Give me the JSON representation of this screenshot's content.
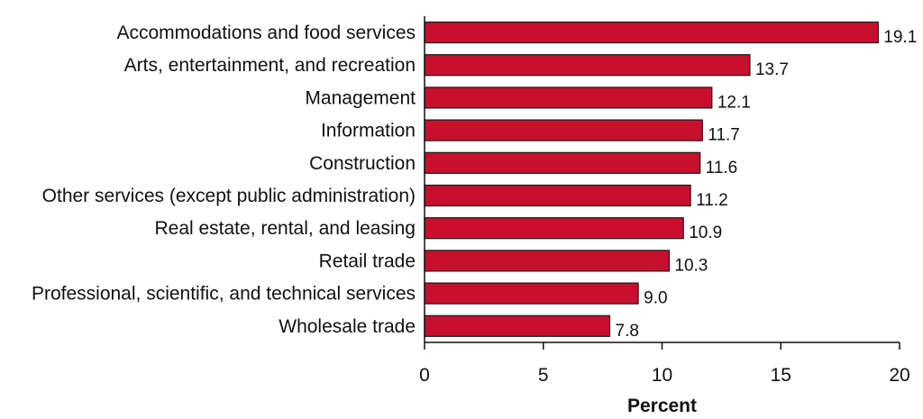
{
  "chart_data": {
    "type": "bar",
    "orientation": "horizontal",
    "categories": [
      "Accommodations and food services",
      "Arts, entertainment, and recreation",
      "Management",
      "Information",
      "Construction",
      "Other services (except public administration)",
      "Real estate, rental, and leasing",
      "Retail trade",
      "Professional, scientific, and technical services",
      "Wholesale trade"
    ],
    "values": [
      19.1,
      13.7,
      12.1,
      11.7,
      11.6,
      11.2,
      10.9,
      10.3,
      9.0,
      7.8
    ],
    "value_labels": [
      "19.1",
      "13.7",
      "12.1",
      "11.7",
      "11.6",
      "11.2",
      "10.9",
      "10.3",
      "9.0",
      "7.8"
    ],
    "xlabel": "Percent",
    "ylabel": "",
    "xlim": [
      0,
      20
    ],
    "xticks": [
      0,
      5,
      10,
      15,
      20
    ],
    "xtick_labels": [
      "0",
      "5",
      "10",
      "15",
      "20"
    ],
    "bar_color": "#c8102e",
    "grid": false
  }
}
